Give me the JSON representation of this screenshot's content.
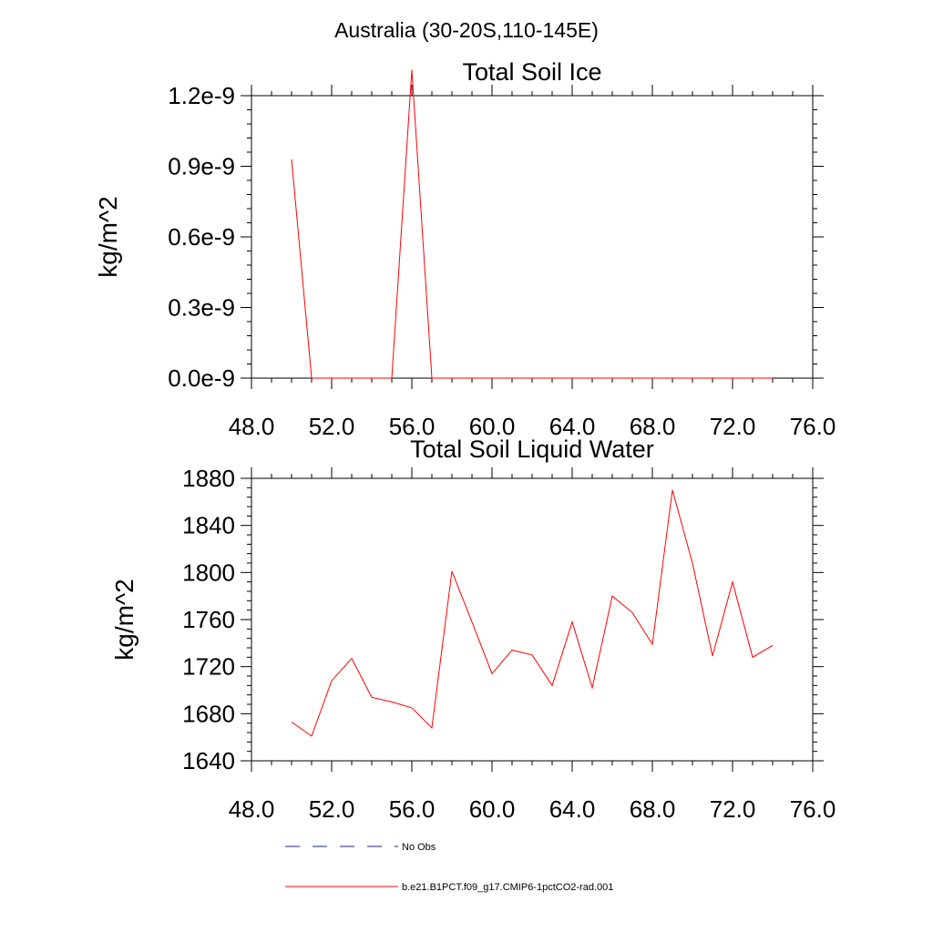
{
  "figure": {
    "supertitle": "Australia (30-20S,110-145E)"
  },
  "chart_data": [
    {
      "type": "line",
      "title": "Total Soil Ice",
      "xlabel": "",
      "ylabel": "kg/m^2",
      "xlim": [
        48,
        76
      ],
      "ylim": [
        0,
        1.2e-09
      ],
      "x_ticks": [
        48,
        52,
        56,
        60,
        64,
        68,
        72,
        76
      ],
      "x_tick_labels": [
        "48.0",
        "52.0",
        "56.0",
        "60.0",
        "64.0",
        "68.0",
        "72.0",
        "76.0"
      ],
      "y_ticks": [
        0,
        3e-10,
        6e-10,
        9e-10,
        1.2e-09
      ],
      "y_tick_labels": [
        "0.0e-9",
        "0.3e-9",
        "0.6e-9",
        "0.9e-9",
        "1.2e-9"
      ],
      "grid": false,
      "series": [
        {
          "name": "b.e21.B1PCT.f09_g17.CMIP6-1pctCO2-rad.001",
          "color": "#ff0000",
          "x": [
            50,
            51,
            52,
            53,
            54,
            55,
            56,
            57,
            58,
            59,
            60,
            61,
            62,
            63,
            64,
            65,
            66,
            67,
            68,
            69,
            70,
            71,
            72,
            73,
            74
          ],
          "y": [
            9.3e-10,
            0,
            0,
            0,
            0,
            0,
            1.31e-09,
            0,
            0,
            0,
            0,
            0,
            0,
            0,
            0,
            0,
            0,
            0,
            0,
            0,
            0,
            0,
            0,
            0,
            0
          ]
        }
      ]
    },
    {
      "type": "line",
      "title": "Total Soil Liquid Water",
      "xlabel": "",
      "ylabel": "kg/m^2",
      "xlim": [
        48,
        76
      ],
      "ylim": [
        1640,
        1880
      ],
      "x_ticks": [
        48,
        52,
        56,
        60,
        64,
        68,
        72,
        76
      ],
      "x_tick_labels": [
        "48.0",
        "52.0",
        "56.0",
        "60.0",
        "64.0",
        "68.0",
        "72.0",
        "76.0"
      ],
      "y_ticks": [
        1640,
        1680,
        1720,
        1760,
        1800,
        1840,
        1880
      ],
      "y_tick_labels": [
        "1640",
        "1680",
        "1720",
        "1760",
        "1800",
        "1840",
        "1880"
      ],
      "grid": false,
      "series": [
        {
          "name": "b.e21.B1PCT.f09_g17.CMIP6-1pctCO2-rad.001",
          "color": "#ff0000",
          "x": [
            50,
            51,
            52,
            53,
            54,
            55,
            56,
            57,
            58,
            59,
            60,
            61,
            62,
            63,
            64,
            65,
            66,
            67,
            68,
            69,
            70,
            71,
            72,
            73,
            74
          ],
          "y": [
            1673,
            1661,
            1708,
            1727,
            1694,
            1690,
            1685,
            1668,
            1801,
            1758,
            1714,
            1734,
            1730,
            1704,
            1758,
            1702,
            1780,
            1766,
            1739,
            1870,
            1808,
            1729,
            1792,
            1728,
            1738
          ]
        }
      ]
    }
  ],
  "legend": {
    "placement": "bottom-left",
    "entries": [
      {
        "label": "No Obs",
        "color": "#1a237e",
        "style": "dashed"
      },
      {
        "label": "b.e21.B1PCT.f09_g17.CMIP6-1pctCO2-rad.001",
        "color": "#ff0000",
        "style": "solid"
      }
    ]
  }
}
